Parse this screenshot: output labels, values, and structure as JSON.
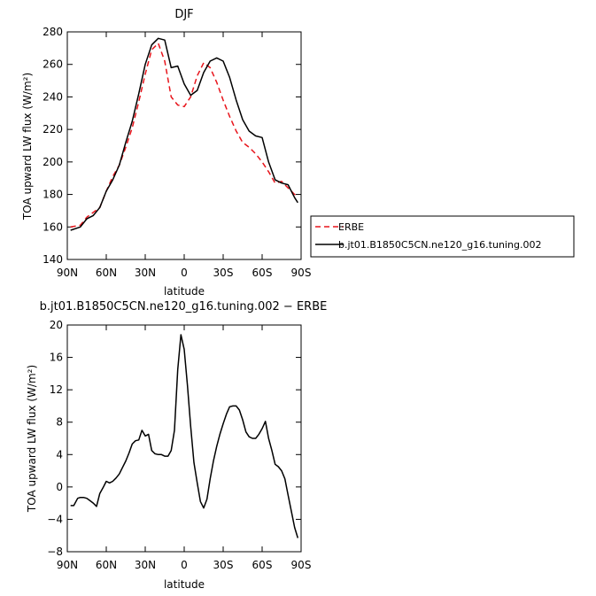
{
  "chart_data": [
    {
      "type": "line",
      "title": "DJF",
      "xlabel": "latitude",
      "ylabel": "TOA upward LW flux (W/m²)",
      "xlim": [
        -90,
        90
      ],
      "ylim": [
        140,
        280
      ],
      "x_ticks": [
        -90,
        -60,
        -30,
        0,
        30,
        60,
        90
      ],
      "x_tick_labels": [
        "90N",
        "60N",
        "30N",
        "0",
        "30S",
        "60S",
        "90S"
      ],
      "y_ticks": [
        140,
        160,
        180,
        200,
        220,
        240,
        260,
        280
      ],
      "y_tick_labels": [
        "140",
        "160",
        "180",
        "200",
        "220",
        "240",
        "260",
        "280"
      ],
      "legend_position": "right",
      "series": [
        {
          "name": "ERBE",
          "color": "#e8141b",
          "dash": "dashed",
          "x": [
            -87.5,
            -80,
            -75,
            -70,
            -65,
            -60,
            -55,
            -50,
            -45,
            -40,
            -35,
            -30,
            -25,
            -20,
            -15,
            -10,
            -5,
            0,
            5,
            10,
            15,
            20,
            25,
            30,
            35,
            40,
            45,
            50,
            55,
            60,
            65,
            70,
            75,
            80,
            85,
            87.5
          ],
          "values": [
            160,
            161,
            166,
            169,
            172,
            182,
            191,
            198,
            209,
            221,
            237,
            254,
            269,
            273,
            262,
            240,
            235,
            234,
            240,
            253,
            261,
            258,
            249,
            238,
            228,
            219,
            212,
            209,
            205,
            200,
            194,
            187,
            188,
            184,
            180,
            180
          ]
        },
        {
          "name": "b.jt01.B1850C5CN.ne120_g16.tuning.002",
          "color": "#000000",
          "dash": "solid",
          "x": [
            -87.5,
            -80,
            -75,
            -70,
            -65,
            -60,
            -55,
            -50,
            -45,
            -40,
            -35,
            -30,
            -25,
            -20,
            -15,
            -10,
            -5,
            0,
            5,
            10,
            15,
            20,
            25,
            30,
            35,
            40,
            45,
            50,
            55,
            60,
            65,
            70,
            75,
            80,
            85,
            87.5
          ],
          "values": [
            158,
            160,
            165,
            167,
            172,
            182,
            189,
            198,
            212,
            225,
            242,
            260,
            272,
            276,
            275,
            258,
            259,
            248,
            241,
            244,
            255,
            262,
            264,
            262,
            252,
            238,
            226,
            219,
            216,
            215,
            200,
            189,
            187,
            186,
            178,
            175
          ]
        }
      ]
    },
    {
      "type": "line",
      "title": "b.jt01.B1850C5CN.ne120_g16.tuning.002 − ERBE",
      "xlabel": "latitude",
      "ylabel": "TOA upward LW flux (W/m²)",
      "xlim": [
        -90,
        90
      ],
      "ylim": [
        -8,
        20
      ],
      "x_ticks": [
        -90,
        -60,
        -30,
        0,
        30,
        60,
        90
      ],
      "x_tick_labels": [
        "90N",
        "60N",
        "30N",
        "0",
        "30S",
        "60S",
        "90S"
      ],
      "y_ticks": [
        -8,
        -4,
        0,
        4,
        8,
        12,
        16,
        20
      ],
      "y_tick_labels": [
        "−8",
        "−4",
        "0",
        "4",
        "8",
        "12",
        "16",
        "20"
      ],
      "series": [
        {
          "color": "#000000",
          "dash": "solid",
          "x": [
            -87.5,
            -85,
            -82,
            -80,
            -77.5,
            -75,
            -72.5,
            -70,
            -67.5,
            -65,
            -62.5,
            -60,
            -57.5,
            -55,
            -52.5,
            -50,
            -47.5,
            -45,
            -42.5,
            -40,
            -37.5,
            -35,
            -32.5,
            -30,
            -27.5,
            -25,
            -22.5,
            -20,
            -17.5,
            -15,
            -12.5,
            -10,
            -7.5,
            -5,
            -2.5,
            0,
            2.5,
            5,
            7.5,
            10,
            12.5,
            15,
            17.5,
            20,
            22.5,
            25,
            27.5,
            30,
            32.5,
            35,
            37.5,
            40,
            42.5,
            45,
            47.5,
            50,
            52.5,
            55,
            57.5,
            60,
            62.5,
            65,
            67.5,
            70,
            72.5,
            75,
            77.5,
            80,
            82.5,
            85,
            87.5
          ],
          "values": [
            -2.3,
            -2.3,
            -1.4,
            -1.3,
            -1.3,
            -1.4,
            -1.7,
            -2.0,
            -2.4,
            -0.8,
            -0.1,
            0.7,
            0.5,
            0.7,
            1.1,
            1.6,
            2.4,
            3.2,
            4.2,
            5.3,
            5.7,
            5.8,
            7.0,
            6.3,
            6.5,
            4.5,
            4.1,
            4.0,
            4.0,
            3.8,
            3.8,
            4.5,
            7.0,
            14.5,
            18.8,
            17.0,
            12.5,
            7.5,
            3.0,
            0.5,
            -1.8,
            -2.6,
            -1.5,
            1.0,
            3.2,
            5.0,
            6.5,
            7.8,
            9.0,
            9.9,
            10.0,
            10.0,
            9.5,
            8.3,
            6.8,
            6.2,
            6.0,
            6.0,
            6.5,
            7.2,
            8.1,
            6.0,
            4.5,
            2.8,
            2.5,
            2.0,
            1.0,
            -1.0,
            -3.0,
            -5.0,
            -6.3
          ]
        }
      ]
    }
  ]
}
